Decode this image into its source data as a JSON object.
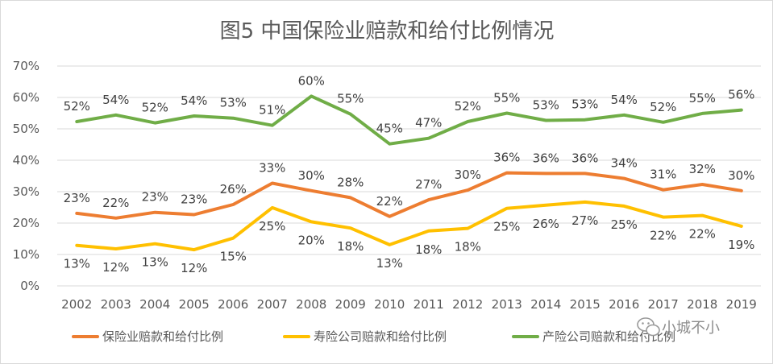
{
  "chart_data": {
    "type": "line",
    "title": "图5  中国保险业赔款和给付比例情况",
    "x": [
      "2002",
      "2003",
      "2004",
      "2005",
      "2006",
      "2007",
      "2008",
      "2009",
      "2010",
      "2011",
      "2012",
      "2013",
      "2014",
      "2015",
      "2016",
      "2017",
      "2018",
      "2019"
    ],
    "ylim": [
      0,
      0.7
    ],
    "yticks": [
      "0%",
      "10%",
      "20%",
      "30%",
      "40%",
      "50%",
      "60%",
      "70%"
    ],
    "grid": true,
    "legend_position": "bottom",
    "series": [
      {
        "name": "保险业赔款和给付比例",
        "color": "#ED7D31",
        "values": [
          0.231,
          0.216,
          0.234,
          0.227,
          0.259,
          0.327,
          0.303,
          0.281,
          0.221,
          0.274,
          0.305,
          0.36,
          0.358,
          0.358,
          0.342,
          0.306,
          0.323,
          0.303
        ],
        "labels": [
          "23%",
          "22%",
          "23%",
          "23%",
          "26%",
          "33%",
          "30%",
          "28%",
          "22%",
          "27%",
          "30%",
          "36%",
          "36%",
          "36%",
          "34%",
          "31%",
          "32%",
          "30%"
        ]
      },
      {
        "name": "寿险公司赔款和给付比例",
        "color": "#FFC000",
        "values": [
          0.129,
          0.118,
          0.134,
          0.115,
          0.152,
          0.249,
          0.204,
          0.184,
          0.131,
          0.175,
          0.183,
          0.247,
          0.257,
          0.267,
          0.254,
          0.219,
          0.224,
          0.19
        ],
        "labels": [
          "13%",
          "12%",
          "13%",
          "12%",
          "15%",
          "25%",
          "20%",
          "18%",
          "13%",
          "18%",
          "18%",
          "25%",
          "26%",
          "27%",
          "25%",
          "22%",
          "22%",
          "19%"
        ]
      },
      {
        "name": "产险公司赔款和给付比例",
        "color": "#70AD47",
        "values": [
          0.523,
          0.544,
          0.519,
          0.541,
          0.534,
          0.511,
          0.604,
          0.547,
          0.452,
          0.47,
          0.523,
          0.55,
          0.527,
          0.529,
          0.544,
          0.521,
          0.549,
          0.56
        ],
        "labels": [
          "52%",
          "54%",
          "52%",
          "54%",
          "53%",
          "51%",
          "60%",
          "55%",
          "45%",
          "47%",
          "52%",
          "55%",
          "53%",
          "53%",
          "54%",
          "52%",
          "55%",
          "56%"
        ]
      }
    ]
  },
  "watermark": {
    "text": "小城不小",
    "icon": "wechat-icon"
  }
}
